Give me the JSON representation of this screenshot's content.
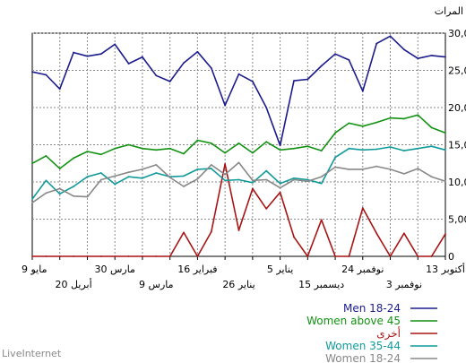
{
  "chart_data": {
    "type": "line",
    "ylabel": "المرات",
    "ylim": [
      0,
      30000
    ],
    "yticks": [
      0,
      5000,
      10000,
      15000,
      20000,
      25000,
      30000
    ],
    "ytick_labels": [
      "0",
      "5,000",
      "10,000",
      "15,000",
      "20,000",
      "25,000",
      "30,000"
    ],
    "grid": true,
    "x_start_label": "9 مايو",
    "x_end_label": "13 أكتوبر",
    "x_tick_labels_upper": [
      "9 مايو",
      "30 مارس",
      "16 فبراير",
      "5 يناير",
      "24 نوفمبر",
      "13 أكتوبر"
    ],
    "x_tick_labels_lower": [
      "20 أبريل",
      "9 مارس",
      "26 يناير",
      "15 ديسمبر",
      "3 نوفمبر"
    ],
    "series": [
      {
        "name": "Men 18-24",
        "color": "#1b1b8c",
        "values": [
          24800,
          24400,
          22500,
          27400,
          26900,
          27200,
          28500,
          25900,
          26800,
          24300,
          23500,
          26000,
          27500,
          25300,
          20300,
          24500,
          23500,
          20000,
          14900,
          23600,
          23800,
          25600,
          27200,
          26400,
          22200,
          28600,
          29600,
          27800,
          26600,
          27000,
          26800
        ]
      },
      {
        "name": "Women above 45",
        "color": "#129212",
        "values": [
          12500,
          13500,
          11800,
          13200,
          14100,
          13700,
          14500,
          15000,
          14500,
          14300,
          14500,
          13800,
          15600,
          15200,
          13900,
          15200,
          13900,
          15400,
          14300,
          14500,
          14800,
          14200,
          16600,
          17900,
          17500,
          18000,
          18600,
          18500,
          19000,
          17300,
          16600
        ]
      },
      {
        "name": "أخرى",
        "color": "#a81414",
        "values": [
          0,
          0,
          0,
          0,
          0,
          0,
          0,
          0,
          0,
          0,
          0,
          3200,
          0,
          3300,
          12400,
          3500,
          9100,
          6400,
          8600,
          2600,
          0,
          4900,
          0,
          0,
          6500,
          3100,
          0,
          3100,
          0,
          0,
          3000
        ]
      },
      {
        "name": "Women 35-44",
        "color": "#119a9a",
        "values": [
          7700,
          10200,
          8400,
          9400,
          10700,
          11200,
          9700,
          10700,
          10500,
          11200,
          10700,
          10800,
          11700,
          11800,
          10200,
          10300,
          9900,
          11500,
          9800,
          10500,
          10300,
          9800,
          13300,
          14500,
          14300,
          14400,
          14700,
          14200,
          14500,
          14800,
          14300
        ]
      },
      {
        "name": "Women 18-24",
        "color": "#888888",
        "values": [
          7200,
          8500,
          9100,
          8100,
          8000,
          10300,
          10800,
          11300,
          11700,
          12300,
          10600,
          9400,
          10400,
          12300,
          11000,
          12600,
          10200,
          10300,
          9200,
          10300,
          10100,
          10700,
          12000,
          11700,
          11700,
          12100,
          11700,
          11100,
          11800,
          10700,
          10100
        ]
      }
    ]
  },
  "legend": [
    {
      "label": "Men 18-24",
      "color": "#1b1b8c"
    },
    {
      "label": "Women above 45",
      "color": "#129212"
    },
    {
      "label": "أخرى",
      "color": "#a81414"
    },
    {
      "label": "Women 35-44",
      "color": "#119a9a"
    },
    {
      "label": "Women 18-24",
      "color": "#888888"
    }
  ],
  "watermark": "LiveInternet"
}
